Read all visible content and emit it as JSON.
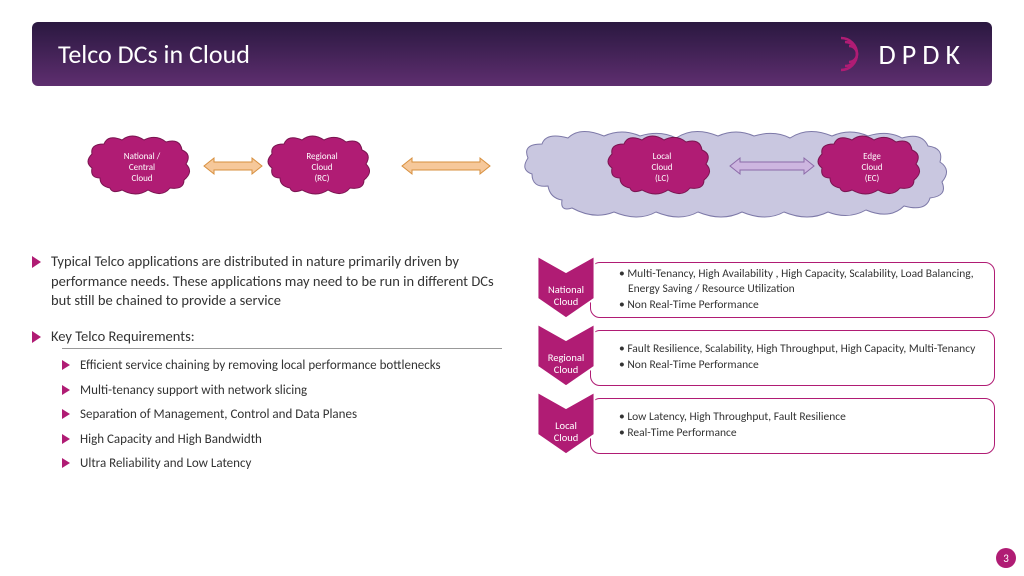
{
  "colors": {
    "header_grad_top": "#2a1840",
    "header_grad_bottom": "#5e2e6f",
    "brand_magenta": "#b01c74",
    "cloud_bg": "#c9c7e0",
    "arrow_fill": "#f6c89a",
    "arrow_stroke": "#d78f3e",
    "arrow_purple_fill": "#cdb6e0",
    "arrow_purple_stroke": "#8c6aa8",
    "text": "#333333"
  },
  "header": {
    "title": "Telco DCs in Cloud",
    "brand": "DPDK"
  },
  "clouds": {
    "national": "National /\nCentral\nCloud",
    "regional": "Regional\nCloud\n(RC)",
    "local": "Local\nCloud\n(LC)",
    "edge": "Edge\nCloud\n(EC)"
  },
  "left": {
    "intro": "Typical Telco applications are distributed in nature primarily driven by performance needs. These applications may need to be run in different DCs but still be chained to provide a service",
    "req_heading": "Key Telco Requirements:",
    "reqs": [
      "Efficient service chaining by removing local performance bottlenecks",
      "Multi-tenancy support with network slicing",
      "Separation of Management, Control and Data Planes",
      "High Capacity and High Bandwidth",
      "Ultra Reliability and Low Latency"
    ]
  },
  "right": [
    {
      "label": "National\nCloud",
      "lines": [
        "Multi-Tenancy, High Availability , High Capacity, Scalability, Load Balancing, Energy Saving / Resource Utilization",
        "Non Real-Time Performance"
      ]
    },
    {
      "label": "Regional\nCloud",
      "lines": [
        "Fault Resilience, Scalability, High Throughput, High Capacity, Multi-Tenancy",
        "Non Real-Time Performance"
      ]
    },
    {
      "label": "Local\nCloud",
      "lines": [
        "Low Latency, High Throughput, Fault Resilience",
        "Real-Time Performance"
      ]
    }
  ],
  "page": "3"
}
